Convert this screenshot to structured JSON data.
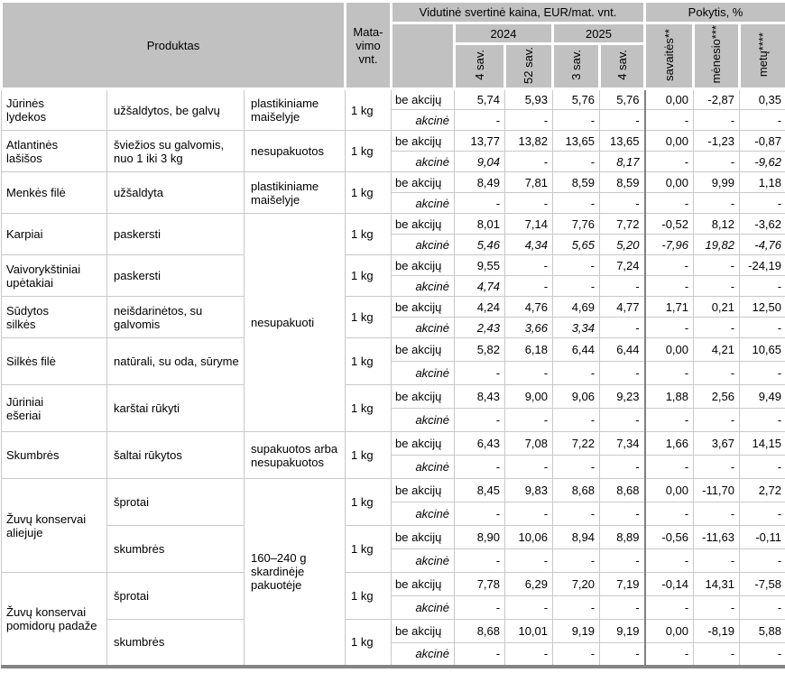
{
  "table": {
    "header": {
      "produktas": "Produktas",
      "matavimo": "Mata-\nvimo\nvnt.",
      "kaina": "Vidutinė svertinė kaina, EUR/mat. vnt.",
      "pokytis": "Pokytis, %",
      "years": [
        "2024",
        "2025"
      ],
      "weeks": [
        "4 sav.",
        "52 sav.",
        "3 sav.",
        "4 sav."
      ],
      "changes": [
        "savaitės**",
        "mėnesio***",
        "metų****"
      ]
    },
    "labels": {
      "be": "be akcijų",
      "akcine": "akcinė"
    },
    "colors": {
      "header_bg": "#c1c1c1",
      "grid_line": "#c9c9c9",
      "group_line": "#9e9e9e",
      "divider": "#808080"
    },
    "products": [
      {
        "name": "Jūrinės\nlydekos",
        "desc": "užšaldytos, be galvų",
        "pack": "plastikiniame\nmaišelyje",
        "pack_span": 1,
        "unit": "1 kg",
        "be": [
          "5,74",
          "5,93",
          "5,76",
          "5,76",
          "0,00",
          "-2,87",
          "0,35"
        ],
        "akcine": [
          "-",
          "-",
          "-",
          "-",
          "-",
          "-",
          "-"
        ]
      },
      {
        "name": "Atlantinės\nlašišos",
        "desc": "šviežios su galvomis,\nnuo 1 iki 3 kg",
        "pack": "nesupakuotos",
        "pack_span": 1,
        "unit": "1 kg",
        "be": [
          "13,77",
          "13,82",
          "13,65",
          "13,65",
          "0,00",
          "-1,23",
          "-0,87"
        ],
        "akcine": [
          "9,04",
          "-",
          "-",
          "8,17",
          "-",
          "-",
          "-9,62"
        ]
      },
      {
        "name": "Menkės filė",
        "desc": "užšaldyta",
        "pack": "plastikiniame\nmaišelyje",
        "pack_span": 1,
        "unit": "1 kg",
        "be": [
          "8,49",
          "7,81",
          "8,59",
          "8,59",
          "0,00",
          "9,99",
          "1,18"
        ],
        "akcine": [
          "-",
          "-",
          "-",
          "-",
          "-",
          "-",
          "-"
        ]
      },
      {
        "name": "Karpiai",
        "desc": "paskersti",
        "pack": "nesupakuoti",
        "pack_span": 5,
        "unit": "1 kg",
        "be": [
          "8,01",
          "7,14",
          "7,76",
          "7,72",
          "-0,52",
          "8,12",
          "-3,62"
        ],
        "akcine": [
          "5,46",
          "4,34",
          "5,65",
          "5,20",
          "-7,96",
          "19,82",
          "-4,76"
        ]
      },
      {
        "name": "Vaivorykštiniai\nupėtakiai",
        "desc": "paskersti",
        "unit": "1 kg",
        "be": [
          "9,55",
          "-",
          "-",
          "7,24",
          "-",
          "-",
          "-24,19"
        ],
        "akcine": [
          "4,74",
          "-",
          "-",
          "-",
          "-",
          "-",
          "-"
        ]
      },
      {
        "name": "Sūdytos\nsilkės",
        "desc": "neišdarinėtos, su\ngalvomis",
        "unit": "1 kg",
        "be": [
          "4,24",
          "4,76",
          "4,69",
          "4,77",
          "1,71",
          "0,21",
          "12,50"
        ],
        "akcine": [
          "2,43",
          "3,66",
          "3,34",
          "-",
          "-",
          "-",
          "-"
        ]
      },
      {
        "name": "Silkės filė",
        "desc": "natūrali, su oda, sūryme",
        "unit": "1 kg",
        "be": [
          "5,82",
          "6,18",
          "6,44",
          "6,44",
          "0,00",
          "4,21",
          "10,65"
        ],
        "akcine": [
          "-",
          "-",
          "-",
          "-",
          "-",
          "-",
          "-"
        ]
      },
      {
        "name": "Jūriniai\nešeriai",
        "desc": "karštai rūkyti",
        "unit": "1 kg",
        "be": [
          "8,43",
          "9,00",
          "9,06",
          "9,23",
          "1,88",
          "2,56",
          "9,49"
        ],
        "akcine": [
          "-",
          "-",
          "-",
          "-",
          "-",
          "-",
          "-"
        ]
      },
      {
        "name": "Skumbrės",
        "desc": "šaltai rūkytos",
        "pack": "supakuotos arba\nnesupakuotos",
        "pack_span": 1,
        "unit": "1 kg",
        "be": [
          "6,43",
          "7,08",
          "7,22",
          "7,34",
          "1,66",
          "3,67",
          "14,15"
        ],
        "akcine": [
          "-",
          "-",
          "-",
          "-",
          "-",
          "-",
          "-"
        ]
      },
      {
        "name": "Žuvų konservai\naliejuje",
        "name_span": 2,
        "desc": "šprotai",
        "pack": "160–240 g\nskardinėje\npakuotėje",
        "pack_span": 4,
        "unit": "1 kg",
        "be": [
          "8,45",
          "9,83",
          "8,68",
          "8,68",
          "0,00",
          "-11,70",
          "2,72"
        ],
        "akcine": [
          "-",
          "-",
          "-",
          "-",
          "-",
          "-",
          "-"
        ]
      },
      {
        "desc": "skumbrės",
        "unit": "1 kg",
        "be": [
          "8,90",
          "10,06",
          "8,94",
          "8,89",
          "-0,56",
          "-11,63",
          "-0,11"
        ],
        "akcine": [
          "-",
          "-",
          "-",
          "-",
          "-",
          "-",
          "-"
        ]
      },
      {
        "name": "Žuvų konservai\npomidorų padaže",
        "name_span": 2,
        "desc": "šprotai",
        "unit": "1 kg",
        "be": [
          "7,78",
          "6,29",
          "7,20",
          "7,19",
          "-0,14",
          "14,31",
          "-7,58"
        ],
        "akcine": [
          "-",
          "-",
          "-",
          "-",
          "-",
          "-",
          "-"
        ]
      },
      {
        "desc": "skumbrės",
        "unit": "1 kg",
        "be": [
          "8,68",
          "10,01",
          "9,19",
          "9,19",
          "0,00",
          "-8,19",
          "5,88"
        ],
        "akcine": [
          "-",
          "-",
          "-",
          "-",
          "-",
          "-",
          "-"
        ]
      }
    ]
  }
}
